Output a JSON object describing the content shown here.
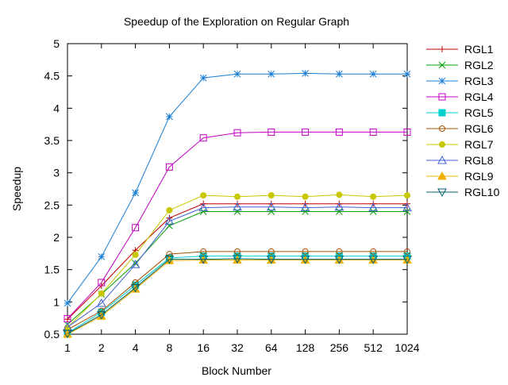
{
  "chart_data": {
    "type": "line",
    "title": "Speedup of the Exploration on Regular Graph",
    "xlabel": "Block Number",
    "ylabel": "Speedup",
    "x_scale": "log2",
    "x": [
      "1",
      "2",
      "4",
      "8",
      "16",
      "32",
      "64",
      "128",
      "256",
      "512",
      "1024"
    ],
    "yticks": [
      "0.5",
      "1",
      "1.5",
      "2",
      "2.5",
      "3",
      "3.5",
      "4",
      "4.5",
      "5"
    ],
    "ylim": [
      0.5,
      5
    ],
    "grid": false,
    "legend_position": "right",
    "series": [
      {
        "name": "RGL1",
        "color": "#c00000",
        "marker": "plus",
        "values": [
          0.73,
          1.25,
          1.8,
          2.3,
          2.52,
          2.52,
          2.52,
          2.52,
          2.52,
          2.52,
          2.52
        ]
      },
      {
        "name": "RGL2",
        "color": "#00a000",
        "marker": "cross",
        "values": [
          0.65,
          1.12,
          1.6,
          2.18,
          2.4,
          2.4,
          2.4,
          2.4,
          2.4,
          2.4,
          2.4
        ]
      },
      {
        "name": "RGL3",
        "color": "#1a7fd4",
        "marker": "star",
        "values": [
          0.98,
          1.7,
          2.69,
          3.87,
          4.47,
          4.53,
          4.53,
          4.54,
          4.53,
          4.53,
          4.53
        ]
      },
      {
        "name": "RGL4",
        "color": "#c000c0",
        "marker": "square",
        "values": [
          0.74,
          1.3,
          2.15,
          3.09,
          3.54,
          3.62,
          3.63,
          3.63,
          3.63,
          3.63,
          3.63
        ]
      },
      {
        "name": "RGL5",
        "color": "#00d0d0",
        "marker": "filled-square",
        "values": [
          0.52,
          0.84,
          1.26,
          1.68,
          1.71,
          1.71,
          1.71,
          1.71,
          1.71,
          1.71,
          1.71
        ]
      },
      {
        "name": "RGL6",
        "color": "#a05000",
        "marker": "circle",
        "values": [
          0.57,
          0.86,
          1.3,
          1.74,
          1.78,
          1.78,
          1.78,
          1.78,
          1.78,
          1.78,
          1.78
        ]
      },
      {
        "name": "RGL7",
        "color": "#c8c800",
        "marker": "filled-circle",
        "values": [
          0.6,
          1.13,
          1.73,
          2.42,
          2.65,
          2.63,
          2.65,
          2.63,
          2.66,
          2.63,
          2.65
        ]
      },
      {
        "name": "RGL8",
        "color": "#4060d0",
        "marker": "triangle",
        "values": [
          0.61,
          0.98,
          1.58,
          2.25,
          2.46,
          2.47,
          2.47,
          2.46,
          2.47,
          2.46,
          2.46
        ]
      },
      {
        "name": "RGL9",
        "color": "#f0b000",
        "marker": "filled-triangle",
        "values": [
          0.5,
          0.78,
          1.2,
          1.64,
          1.65,
          1.65,
          1.65,
          1.65,
          1.65,
          1.65,
          1.65
        ]
      },
      {
        "name": "RGL10",
        "color": "#006070",
        "marker": "triangle-down",
        "values": [
          0.51,
          0.8,
          1.22,
          1.66,
          1.66,
          1.67,
          1.66,
          1.66,
          1.66,
          1.66,
          1.66
        ]
      }
    ]
  }
}
